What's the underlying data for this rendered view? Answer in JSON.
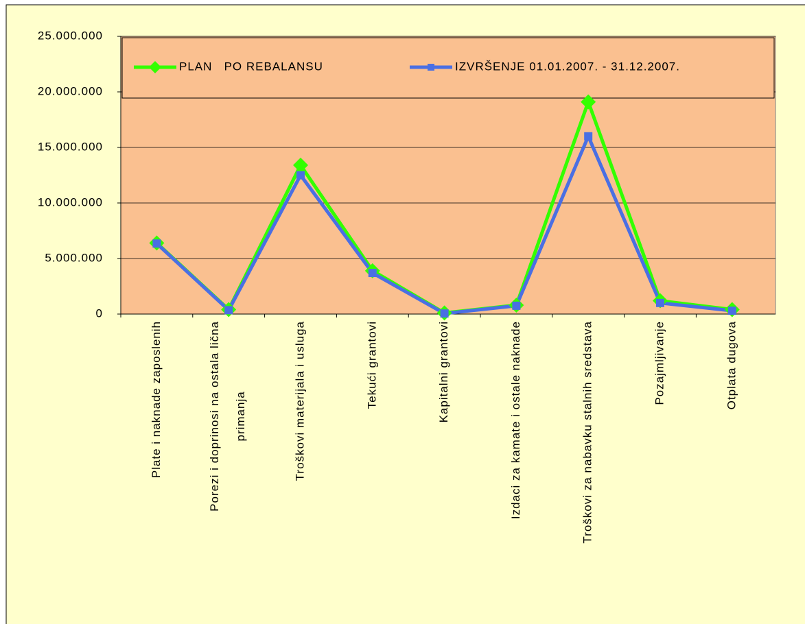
{
  "chart_data": {
    "type": "line",
    "categories": [
      "Plate i naknade zaposlenih",
      "Porezi i doprinosi na ostala lična primanja",
      "Troškovi materijala i usluga",
      "Tekući grantovi",
      "Kapitalni grantovi",
      "Izdaci za kamate i ostale naknade",
      "Troškovi za nabavku stalnih sredstava",
      "Pozajmljivanje",
      "Otplata dugova"
    ],
    "series": [
      {
        "name": "PLAN   PO REBALANSU",
        "color": "#33ff00",
        "marker": "diamond",
        "values": [
          6400000,
          400000,
          13400000,
          3900000,
          100000,
          800000,
          19100000,
          1200000,
          400000
        ]
      },
      {
        "name": "IZVRŠENJE 01.01.2007. - 31.12.2007.",
        "color": "#4a6fe3",
        "marker": "square",
        "values": [
          6350000,
          350000,
          12500000,
          3700000,
          50000,
          750000,
          16000000,
          1000000,
          300000
        ]
      }
    ],
    "ylim": [
      0,
      25000000
    ],
    "yticks": [
      0,
      {
        "value": 5000000,
        "label": "5.000.000"
      },
      {
        "value": 10000000,
        "label": "10.000.000"
      },
      {
        "value": 15000000,
        "label": "15.000.000"
      },
      {
        "value": 20000000,
        "label": "20.000.000"
      },
      {
        "value": 25000000,
        "label": "25.000.000"
      }
    ],
    "grid": true,
    "legend": "top"
  }
}
